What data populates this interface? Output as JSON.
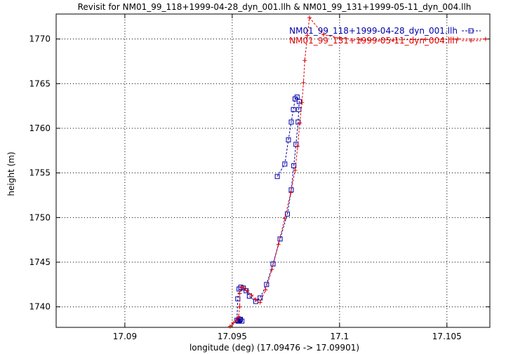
{
  "chart_data": {
    "type": "line",
    "title": "Revisit for NM01_99_118+1999-04-28_dyn_001.llh & NM01_99_131+1999-05-11_dyn_004.llh",
    "xlabel": "longitude (deg) (17.09476 -> 17.09901)",
    "ylabel": "height (m)",
    "xlim": [
      17.0868,
      17.107
    ],
    "ylim": [
      1737.7,
      1772.8
    ],
    "xticks": [
      17.09,
      17.095,
      17.1,
      17.105
    ],
    "xtick_labels": [
      "17.09",
      "17.095",
      "17.1",
      "17.105"
    ],
    "yticks": [
      1740,
      1745,
      1750,
      1755,
      1760,
      1765,
      1770
    ],
    "ytick_labels": [
      "1740",
      "1745",
      "1750",
      "1755",
      "1760",
      "1765",
      "1770"
    ],
    "grid": true,
    "legend_position": "top-right",
    "series": [
      {
        "name": "NM01_99_118+1999-04-28_dyn_001.llh",
        "color": "#0000aa",
        "marker": "square",
        "points": [
          [
            17.0971,
            1754.6
          ],
          [
            17.09745,
            1756.0
          ],
          [
            17.09762,
            1758.7
          ],
          [
            17.09775,
            1760.7
          ],
          [
            17.09785,
            1762.1
          ],
          [
            17.09793,
            1763.3
          ],
          [
            17.09802,
            1763.5
          ],
          [
            17.09812,
            1763.0
          ],
          [
            17.0981,
            1762.1
          ],
          [
            17.09807,
            1760.7
          ],
          [
            17.09797,
            1758.2
          ],
          [
            17.09787,
            1755.8
          ],
          [
            17.09775,
            1753.1
          ],
          [
            17.09757,
            1750.4
          ],
          [
            17.09723,
            1747.6
          ],
          [
            17.0969,
            1744.8
          ],
          [
            17.0966,
            1742.5
          ],
          [
            17.0963,
            1741.0
          ],
          [
            17.0961,
            1740.6
          ],
          [
            17.0958,
            1741.2
          ],
          [
            17.09565,
            1741.8
          ],
          [
            17.09552,
            1742.1
          ],
          [
            17.0954,
            1742.2
          ],
          [
            17.09532,
            1742.0
          ],
          [
            17.09526,
            1740.9
          ],
          [
            17.09522,
            1738.5
          ],
          [
            17.0953,
            1738.4
          ],
          [
            17.09545,
            1738.4
          ],
          [
            17.09538,
            1738.6
          ],
          [
            17.09528,
            1738.4
          ],
          [
            17.09535,
            1738.5
          ]
        ]
      },
      {
        "name": "NM01_99_131+1999-05-11_dyn_004.llh",
        "color": "#dd0000",
        "marker": "plus",
        "points": [
          [
            17.0949,
            1737.8
          ],
          [
            17.09505,
            1738.2
          ],
          [
            17.0952,
            1738.5
          ],
          [
            17.0953,
            1738.9
          ],
          [
            17.09535,
            1740.0
          ],
          [
            17.09535,
            1741.5
          ],
          [
            17.09542,
            1742.2
          ],
          [
            17.09555,
            1742.1
          ],
          [
            17.0957,
            1741.8
          ],
          [
            17.0959,
            1741.3
          ],
          [
            17.0961,
            1740.8
          ],
          [
            17.0963,
            1740.5
          ],
          [
            17.09655,
            1741.9
          ],
          [
            17.09685,
            1744.2
          ],
          [
            17.09715,
            1747.0
          ],
          [
            17.09745,
            1749.9
          ],
          [
            17.09773,
            1752.8
          ],
          [
            17.09793,
            1755.3
          ],
          [
            17.09805,
            1758.0
          ],
          [
            17.09815,
            1760.6
          ],
          [
            17.09825,
            1762.9
          ],
          [
            17.09832,
            1765.1
          ],
          [
            17.09838,
            1767.6
          ],
          [
            17.0985,
            1770.4
          ],
          [
            17.0986,
            1772.4
          ],
          [
            17.09925,
            1770.5
          ],
          [
            17.1,
            1770.1
          ],
          [
            17.101,
            1769.9
          ],
          [
            17.1025,
            1769.9
          ],
          [
            17.104,
            1769.95
          ],
          [
            17.1055,
            1770.0
          ],
          [
            17.1068,
            1770.0
          ]
        ]
      }
    ]
  }
}
